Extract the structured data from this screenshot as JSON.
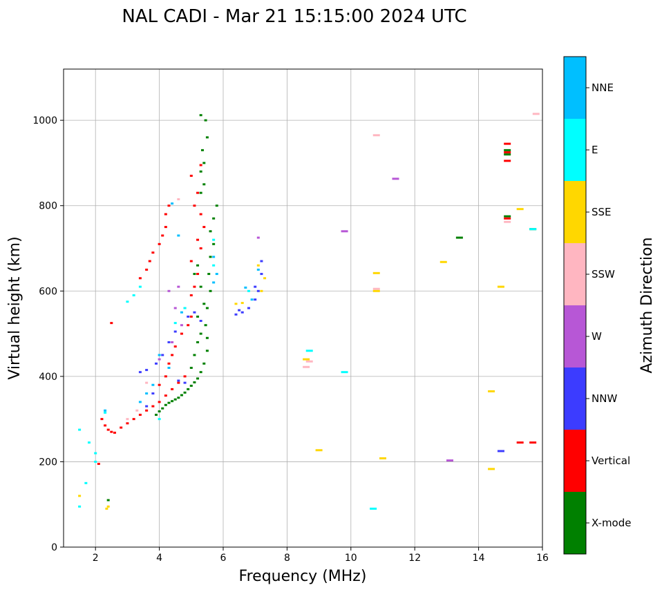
{
  "chart_data": {
    "type": "scatter",
    "title": "NAL CADI - Mar 21 15:15:00 2024 UTC",
    "xlabel": "Frequency (MHz)",
    "ylabel": "Virtual height (km)",
    "xlim": [
      1,
      16
    ],
    "ylim": [
      0,
      1120
    ],
    "xticks": [
      2,
      4,
      6,
      8,
      10,
      12,
      14,
      16
    ],
    "xtick_labels": [
      "2",
      "4",
      "6",
      "8",
      "10",
      "12",
      "14",
      "16"
    ],
    "yticks": [
      0,
      200,
      400,
      600,
      800,
      1000
    ],
    "ytick_labels": [
      "0",
      "200",
      "400",
      "600",
      "800",
      "1000"
    ],
    "grid": true,
    "colorbar": {
      "label": "Azimuth Direction",
      "categories": [
        {
          "name": "X-mode",
          "color": "#008000"
        },
        {
          "name": "Vertical",
          "color": "#ff0000"
        },
        {
          "name": "NNW",
          "color": "#3c3cff"
        },
        {
          "name": "W",
          "color": "#b757d6"
        },
        {
          "name": "SSW",
          "color": "#ffb6c1"
        },
        {
          "name": "SSE",
          "color": "#ffd700"
        },
        {
          "name": "E",
          "color": "#00ffff"
        },
        {
          "name": "NNE",
          "color": "#00bfff"
        }
      ]
    },
    "series": [
      {
        "name": "X-mode",
        "points": [
          [
            3.9,
            310
          ],
          [
            4.0,
            318
          ],
          [
            4.1,
            325
          ],
          [
            4.2,
            333
          ],
          [
            4.3,
            338
          ],
          [
            4.4,
            342
          ],
          [
            4.5,
            346
          ],
          [
            4.6,
            350
          ],
          [
            4.7,
            356
          ],
          [
            4.8,
            362
          ],
          [
            4.9,
            370
          ],
          [
            5.0,
            378
          ],
          [
            5.1,
            386
          ],
          [
            5.2,
            395
          ],
          [
            5.3,
            410
          ],
          [
            5.4,
            430
          ],
          [
            5.5,
            460
          ],
          [
            5.5,
            490
          ],
          [
            5.45,
            520
          ],
          [
            5.5,
            560
          ],
          [
            5.6,
            600
          ],
          [
            5.55,
            640
          ],
          [
            5.6,
            680
          ],
          [
            5.7,
            710
          ],
          [
            5.6,
            740
          ],
          [
            5.7,
            770
          ],
          [
            5.8,
            800
          ],
          [
            5.3,
            830
          ],
          [
            5.4,
            850
          ],
          [
            5.3,
            880
          ],
          [
            5.4,
            900
          ],
          [
            5.35,
            930
          ],
          [
            5.5,
            960
          ],
          [
            5.45,
            1000
          ],
          [
            5.3,
            1012
          ],
          [
            5.0,
            420
          ],
          [
            5.1,
            450
          ],
          [
            5.2,
            480
          ],
          [
            5.3,
            500
          ],
          [
            5.2,
            540
          ],
          [
            5.4,
            570
          ],
          [
            5.3,
            610
          ],
          [
            5.1,
            640
          ],
          [
            5.2,
            660
          ],
          [
            2.4,
            110
          ],
          [
            14.9,
            775
          ],
          [
            14.9,
            930
          ],
          [
            14.9,
            920
          ],
          [
            13.4,
            725
          ],
          [
            15.7,
            745
          ]
        ]
      },
      {
        "name": "Vertical",
        "points": [
          [
            2.2,
            300
          ],
          [
            2.3,
            285
          ],
          [
            2.4,
            275
          ],
          [
            2.5,
            270
          ],
          [
            2.6,
            268
          ],
          [
            2.8,
            280
          ],
          [
            3.0,
            290
          ],
          [
            3.2,
            300
          ],
          [
            3.4,
            310
          ],
          [
            3.6,
            320
          ],
          [
            3.8,
            330
          ],
          [
            4.0,
            340
          ],
          [
            4.2,
            355
          ],
          [
            4.4,
            370
          ],
          [
            4.6,
            385
          ],
          [
            4.8,
            400
          ],
          [
            4.0,
            380
          ],
          [
            4.2,
            400
          ],
          [
            4.3,
            430
          ],
          [
            4.4,
            450
          ],
          [
            4.5,
            470
          ],
          [
            4.7,
            500
          ],
          [
            4.9,
            520
          ],
          [
            5.0,
            540
          ],
          [
            4.8,
            560
          ],
          [
            5.0,
            590
          ],
          [
            5.1,
            610
          ],
          [
            5.2,
            640
          ],
          [
            5.0,
            670
          ],
          [
            5.3,
            700
          ],
          [
            5.2,
            720
          ],
          [
            5.4,
            750
          ],
          [
            5.3,
            780
          ],
          [
            5.1,
            800
          ],
          [
            5.2,
            830
          ],
          [
            3.4,
            630
          ],
          [
            3.6,
            650
          ],
          [
            3.7,
            670
          ],
          [
            3.8,
            690
          ],
          [
            4.0,
            710
          ],
          [
            4.1,
            730
          ],
          [
            4.2,
            750
          ],
          [
            4.2,
            780
          ],
          [
            4.3,
            800
          ],
          [
            5.0,
            870
          ],
          [
            5.3,
            895
          ],
          [
            2.5,
            525
          ],
          [
            14.9,
            945
          ],
          [
            14.9,
            925
          ],
          [
            14.9,
            905
          ],
          [
            14.9,
            770
          ],
          [
            15.3,
            245
          ],
          [
            15.7,
            245
          ],
          [
            2.1,
            195
          ]
        ]
      },
      {
        "name": "NNW",
        "points": [
          [
            3.4,
            410
          ],
          [
            3.6,
            415
          ],
          [
            3.9,
            430
          ],
          [
            4.1,
            450
          ],
          [
            4.3,
            480
          ],
          [
            4.5,
            505
          ],
          [
            4.9,
            540
          ],
          [
            5.1,
            550
          ],
          [
            5.3,
            530
          ],
          [
            4.6,
            390
          ],
          [
            4.8,
            385
          ],
          [
            6.4,
            545
          ],
          [
            6.6,
            550
          ],
          [
            6.8,
            560
          ],
          [
            7.0,
            580
          ],
          [
            7.1,
            600
          ],
          [
            7.2,
            640
          ],
          [
            7.2,
            670
          ],
          [
            3.6,
            330
          ],
          [
            3.8,
            360
          ],
          [
            14.7,
            225
          ],
          [
            7.0,
            610
          ],
          [
            6.5,
            555
          ]
        ]
      },
      {
        "name": "W",
        "points": [
          [
            4.3,
            600
          ],
          [
            4.5,
            560
          ],
          [
            4.7,
            520
          ],
          [
            4.4,
            480
          ],
          [
            4.0,
            440
          ],
          [
            9.8,
            740
          ],
          [
            11.4,
            863
          ],
          [
            13.1,
            203
          ],
          [
            7.1,
            725
          ],
          [
            4.6,
            610
          ]
        ]
      },
      {
        "name": "SSW",
        "points": [
          [
            3.0,
            300
          ],
          [
            3.3,
            320
          ],
          [
            3.6,
            385
          ],
          [
            4.6,
            815
          ],
          [
            8.6,
            422
          ],
          [
            10.8,
            965
          ],
          [
            10.8,
            605
          ],
          [
            14.9,
            762
          ],
          [
            15.8,
            1015
          ],
          [
            8.7,
            435
          ]
        ]
      },
      {
        "name": "SSE",
        "points": [
          [
            1.5,
            120
          ],
          [
            2.4,
            95
          ],
          [
            2.35,
            90
          ],
          [
            6.4,
            570
          ],
          [
            6.6,
            572
          ],
          [
            7.2,
            600
          ],
          [
            7.3,
            630
          ],
          [
            9.0,
            227
          ],
          [
            11.0,
            208
          ],
          [
            12.9,
            668
          ],
          [
            14.4,
            365
          ],
          [
            14.4,
            183
          ],
          [
            14.7,
            610
          ],
          [
            15.3,
            792
          ],
          [
            10.8,
            642
          ],
          [
            10.8,
            600
          ],
          [
            8.6,
            440
          ],
          [
            7.1,
            660
          ]
        ]
      },
      {
        "name": "E",
        "points": [
          [
            1.5,
            275
          ],
          [
            1.7,
            150
          ],
          [
            1.8,
            245
          ],
          [
            2.0,
            220
          ],
          [
            2.0,
            200
          ],
          [
            2.3,
            315
          ],
          [
            3.0,
            575
          ],
          [
            3.2,
            590
          ],
          [
            3.4,
            610
          ],
          [
            4.0,
            300
          ],
          [
            5.7,
            720
          ],
          [
            5.7,
            660
          ],
          [
            8.7,
            460
          ],
          [
            9.8,
            410
          ],
          [
            10.7,
            90
          ],
          [
            15.7,
            745
          ],
          [
            1.5,
            95
          ],
          [
            6.8,
            600
          ],
          [
            4.8,
            560
          ],
          [
            4.5,
            525
          ]
        ]
      },
      {
        "name": "NNE",
        "points": [
          [
            4.4,
            805
          ],
          [
            4.6,
            730
          ],
          [
            5.7,
            680
          ],
          [
            5.8,
            640
          ],
          [
            5.7,
            620
          ],
          [
            4.0,
            450
          ],
          [
            4.3,
            420
          ],
          [
            3.8,
            380
          ],
          [
            3.6,
            360
          ],
          [
            6.7,
            608
          ],
          [
            6.9,
            580
          ],
          [
            7.1,
            650
          ],
          [
            2.3,
            320
          ],
          [
            4.7,
            550
          ],
          [
            3.4,
            340
          ]
        ]
      }
    ]
  }
}
